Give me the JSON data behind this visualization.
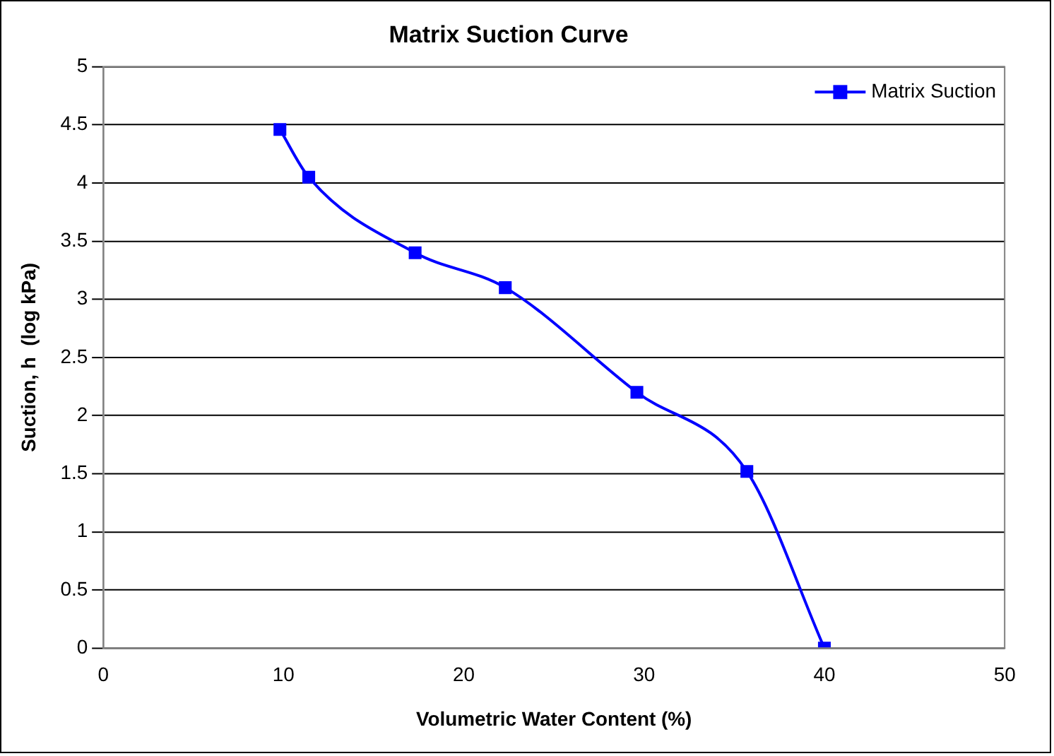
{
  "chart_data": {
    "type": "line",
    "title": "Matrix Suction Curve",
    "xlabel": "Volumetric Water Content (%)",
    "ylabel": "Suction, h  (log kPa)",
    "x": [
      9.8,
      11.4,
      17.3,
      22.3,
      29.6,
      35.7,
      40
    ],
    "series": [
      {
        "name": "Matrix Suction",
        "color": "#0000ff",
        "values": [
          4.46,
          4.05,
          3.4,
          3.1,
          2.2,
          1.52,
          0
        ]
      }
    ],
    "xlim": [
      0,
      50
    ],
    "xticks": [
      0,
      10,
      20,
      30,
      40,
      50
    ],
    "ylim": [
      0,
      5
    ],
    "yticks": [
      0,
      0.5,
      1,
      1.5,
      2,
      2.5,
      3,
      3.5,
      4,
      4.5,
      5
    ],
    "grid": "y",
    "legend": "top right",
    "marker": "square",
    "line_style": "solid"
  }
}
